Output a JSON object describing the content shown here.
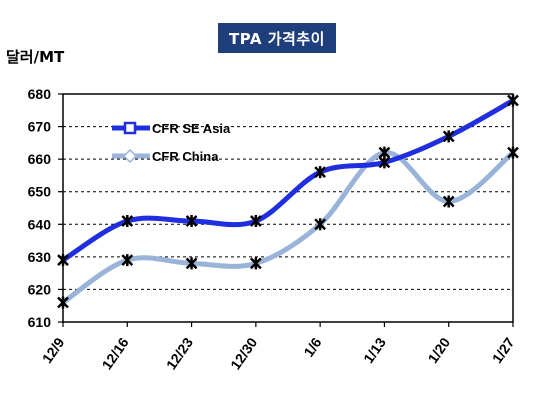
{
  "chart_data": {
    "type": "line",
    "title": "TPA 가격추이",
    "ylabel": "달러/MT",
    "xlabel": "",
    "categories": [
      "12/9",
      "12/16",
      "12/23",
      "12/30",
      "1/6",
      "1/13",
      "1/20",
      "1/27"
    ],
    "ylim": [
      610,
      680
    ],
    "yticks": [
      610,
      620,
      630,
      640,
      650,
      660,
      670,
      680
    ],
    "series": [
      {
        "name": "CFR SE Asia",
        "values": [
          629,
          641,
          641,
          641,
          656,
          659,
          667,
          678
        ],
        "color": "#1f2fe0"
      },
      {
        "name": "CFR China",
        "values": [
          616,
          629,
          628,
          628,
          640,
          662,
          647,
          662
        ],
        "color": "#99b4d8"
      }
    ],
    "grid": "horizontal dashed",
    "legend": "top-left",
    "marker_color": "#000000"
  }
}
